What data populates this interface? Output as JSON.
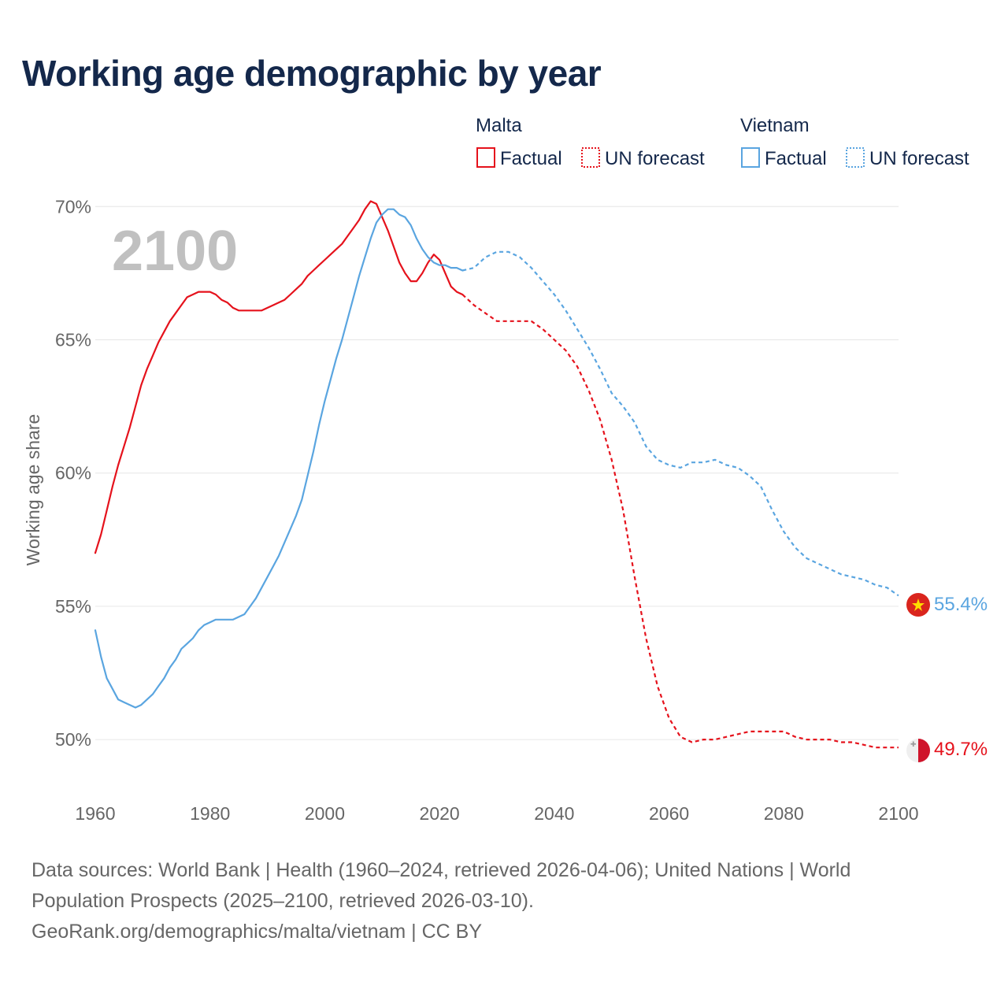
{
  "title": "Working age demographic by year",
  "year_watermark": "2100",
  "legend": {
    "groups": [
      {
        "name": "Malta",
        "color": "#e5121c",
        "factual_label": "Factual",
        "forecast_label": "UN forecast"
      },
      {
        "name": "Vietnam",
        "color": "#5aa5e0",
        "factual_label": "Factual",
        "forecast_label": "UN forecast"
      }
    ]
  },
  "end_labels": {
    "vietnam": "55.4%",
    "malta": "49.7%"
  },
  "footer": {
    "line1": "Data sources: World Bank | Health (1960–2024, retrieved 2026-04-06); United Nations | World",
    "line2": "Population Prospects (2025–2100, retrieved 2026-03-10).",
    "line3": "GeoRank.org/demographics/malta/vietnam | CC BY"
  },
  "colors": {
    "malta": "#e5121c",
    "vietnam": "#5aa5e0",
    "title": "#14284b",
    "axis_text": "#666666",
    "grid": "#e6e6e6",
    "watermark": "#c0c0c0"
  },
  "chart_data": {
    "type": "line",
    "title": "Working age demographic by year",
    "xlabel": "",
    "ylabel": "Working age share",
    "xlim": [
      1960,
      2100
    ],
    "ylim": [
      48.2,
      70.6
    ],
    "x_ticks": [
      1960,
      1980,
      2000,
      2020,
      2040,
      2060,
      2080,
      2100
    ],
    "x_tick_labels": [
      "1960",
      "1980",
      "2000",
      "2020",
      "2040",
      "2060",
      "2080",
      "2100"
    ],
    "y_ticks": [
      50,
      55,
      60,
      65,
      70
    ],
    "y_tick_labels": [
      "50%",
      "55%",
      "60%",
      "65%",
      "70%"
    ],
    "series": [
      {
        "name": "Malta",
        "segment": "Factual",
        "color": "#e5121c",
        "x": [
          1960,
          1961,
          1962,
          1963,
          1964,
          1965,
          1966,
          1967,
          1968,
          1969,
          1970,
          1971,
          1972,
          1973,
          1974,
          1975,
          1976,
          1977,
          1978,
          1979,
          1980,
          1981,
          1982,
          1983,
          1984,
          1985,
          1986,
          1987,
          1988,
          1989,
          1990,
          1991,
          1992,
          1993,
          1994,
          1995,
          1996,
          1997,
          1998,
          1999,
          2000,
          2001,
          2002,
          2003,
          2004,
          2005,
          2006,
          2007,
          2008,
          2009,
          2010,
          2011,
          2012,
          2013,
          2014,
          2015,
          2016,
          2017,
          2018,
          2019,
          2020,
          2021,
          2022,
          2023,
          2024
        ],
        "y": [
          57.0,
          57.7,
          58.6,
          59.5,
          60.3,
          61.0,
          61.7,
          62.5,
          63.3,
          63.9,
          64.4,
          64.9,
          65.3,
          65.7,
          66.0,
          66.3,
          66.6,
          66.7,
          66.8,
          66.8,
          66.8,
          66.7,
          66.5,
          66.4,
          66.2,
          66.1,
          66.1,
          66.1,
          66.1,
          66.1,
          66.2,
          66.3,
          66.4,
          66.5,
          66.7,
          66.9,
          67.1,
          67.4,
          67.6,
          67.8,
          68.0,
          68.2,
          68.4,
          68.6,
          68.9,
          69.2,
          69.5,
          69.9,
          70.2,
          70.1,
          69.6,
          69.1,
          68.5,
          67.9,
          67.5,
          67.2,
          67.2,
          67.5,
          67.9,
          68.2,
          68.0,
          67.5,
          67.0,
          66.8,
          66.7
        ]
      },
      {
        "name": "Malta",
        "segment": "UN forecast",
        "color": "#e5121c",
        "x": [
          2024,
          2026,
          2028,
          2030,
          2032,
          2034,
          2036,
          2038,
          2040,
          2042,
          2044,
          2046,
          2048,
          2050,
          2052,
          2054,
          2056,
          2058,
          2060,
          2062,
          2064,
          2066,
          2068,
          2070,
          2072,
          2074,
          2076,
          2078,
          2080,
          2082,
          2084,
          2086,
          2088,
          2090,
          2092,
          2094,
          2096,
          2098,
          2100
        ],
        "y": [
          66.7,
          66.3,
          66.0,
          65.7,
          65.7,
          65.7,
          65.7,
          65.4,
          65.0,
          64.6,
          64.0,
          63.1,
          62.0,
          60.5,
          58.6,
          56.1,
          53.8,
          52.0,
          50.8,
          50.1,
          49.9,
          50.0,
          50.0,
          50.1,
          50.2,
          50.3,
          50.3,
          50.3,
          50.3,
          50.1,
          50.0,
          50.0,
          50.0,
          49.9,
          49.9,
          49.8,
          49.7,
          49.7,
          49.7
        ]
      },
      {
        "name": "Vietnam",
        "segment": "Factual",
        "color": "#5aa5e0",
        "x": [
          1960,
          1961,
          1962,
          1963,
          1964,
          1965,
          1966,
          1967,
          1968,
          1969,
          1970,
          1971,
          1972,
          1973,
          1974,
          1975,
          1976,
          1977,
          1978,
          1979,
          1980,
          1981,
          1982,
          1983,
          1984,
          1985,
          1986,
          1987,
          1988,
          1989,
          1990,
          1991,
          1992,
          1993,
          1994,
          1995,
          1996,
          1997,
          1998,
          1999,
          2000,
          2001,
          2002,
          2003,
          2004,
          2005,
          2006,
          2007,
          2008,
          2009,
          2010,
          2011,
          2012,
          2013,
          2014,
          2015,
          2016,
          2017,
          2018,
          2019,
          2020,
          2021,
          2022,
          2023,
          2024
        ],
        "y": [
          54.1,
          53.1,
          52.3,
          51.9,
          51.5,
          51.4,
          51.3,
          51.2,
          51.3,
          51.5,
          51.7,
          52.0,
          52.3,
          52.7,
          53.0,
          53.4,
          53.6,
          53.8,
          54.1,
          54.3,
          54.4,
          54.5,
          54.5,
          54.5,
          54.5,
          54.6,
          54.7,
          55.0,
          55.3,
          55.7,
          56.1,
          56.5,
          56.9,
          57.4,
          57.9,
          58.4,
          59.0,
          59.9,
          60.8,
          61.8,
          62.7,
          63.5,
          64.3,
          65.0,
          65.8,
          66.6,
          67.4,
          68.1,
          68.8,
          69.4,
          69.7,
          69.9,
          69.9,
          69.7,
          69.6,
          69.3,
          68.8,
          68.4,
          68.1,
          67.9,
          67.8,
          67.8,
          67.7,
          67.7,
          67.6
        ]
      },
      {
        "name": "Vietnam",
        "segment": "UN forecast",
        "color": "#5aa5e0",
        "x": [
          2024,
          2026,
          2028,
          2030,
          2032,
          2034,
          2036,
          2038,
          2040,
          2042,
          2044,
          2046,
          2048,
          2050,
          2052,
          2054,
          2056,
          2058,
          2060,
          2062,
          2064,
          2066,
          2068,
          2070,
          2072,
          2074,
          2076,
          2078,
          2080,
          2082,
          2084,
          2086,
          2088,
          2090,
          2092,
          2094,
          2096,
          2098,
          2100
        ],
        "y": [
          67.6,
          67.7,
          68.1,
          68.3,
          68.3,
          68.1,
          67.7,
          67.2,
          66.7,
          66.1,
          65.4,
          64.7,
          63.9,
          63.0,
          62.5,
          61.9,
          61.0,
          60.5,
          60.3,
          60.2,
          60.4,
          60.4,
          60.5,
          60.3,
          60.2,
          59.9,
          59.5,
          58.6,
          57.8,
          57.2,
          56.8,
          56.6,
          56.4,
          56.2,
          56.1,
          56.0,
          55.8,
          55.7,
          55.4
        ]
      }
    ]
  }
}
